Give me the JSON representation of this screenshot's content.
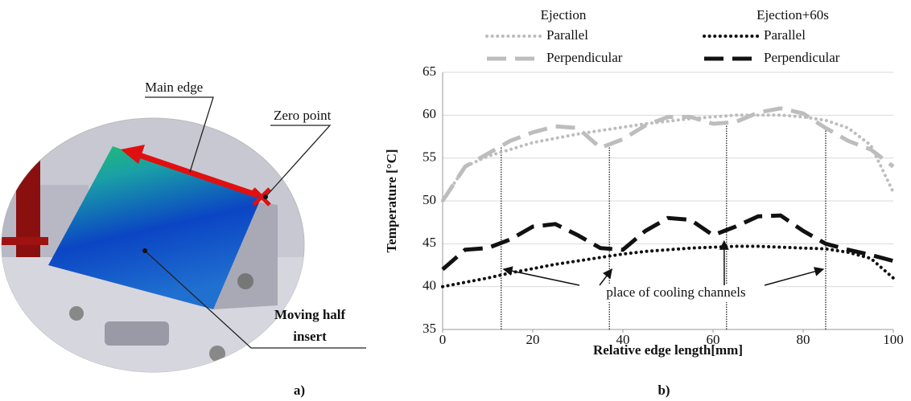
{
  "panel_a": {
    "main_edge": "Main edge",
    "zero_point": "Zero point",
    "moving_half_insert": [
      "Moving half",
      "insert"
    ],
    "caption": "a)"
  },
  "panel_b_caption": "b)",
  "chart_data": {
    "type": "line",
    "xlabel": "Relative edge length[mm]",
    "ylabel": "Temperature [°C]",
    "legend_groups": [
      "Ejection",
      "Ejection+60s"
    ],
    "x": [
      0,
      5,
      10,
      15,
      20,
      25,
      30,
      35,
      40,
      45,
      50,
      55,
      60,
      65,
      70,
      75,
      80,
      85,
      90,
      95,
      100
    ],
    "series": [
      {
        "name": "Parallel",
        "color": "#bdbdbd",
        "style": "dotted",
        "values": [
          50,
          54,
          55.2,
          56,
          56.8,
          57.3,
          57.8,
          58.2,
          58.6,
          59,
          59.3,
          59.6,
          59.8,
          60,
          60,
          60,
          59.8,
          59.4,
          58.5,
          56.5,
          51
        ]
      },
      {
        "name": "Perpendicular",
        "color": "#bdbdbd",
        "style": "dashed",
        "values": [
          50,
          54,
          55.5,
          57,
          58,
          58.7,
          58.5,
          56.2,
          57.2,
          58.8,
          59.8,
          59.8,
          59,
          59.2,
          60.3,
          60.8,
          60.2,
          58.5,
          57,
          56,
          54
        ]
      },
      {
        "name": "Parallel",
        "color": "#111111",
        "style": "dotted",
        "values": [
          40,
          40.5,
          41,
          41.6,
          42.1,
          42.6,
          43,
          43.4,
          43.8,
          44.1,
          44.3,
          44.5,
          44.6,
          44.7,
          44.7,
          44.6,
          44.5,
          44.4,
          44,
          43.3,
          41
        ]
      },
      {
        "name": "Perpendicular",
        "color": "#111111",
        "style": "dashed",
        "values": [
          42,
          44.3,
          44.5,
          45.5,
          47,
          47.3,
          46,
          44.5,
          44.3,
          46.5,
          48,
          47.8,
          46,
          47,
          48.2,
          48.3,
          46.5,
          45,
          44.3,
          43.7,
          43
        ]
      }
    ],
    "cooling_channels": [
      13,
      37,
      63,
      85
    ],
    "annotation": "place of cooling channels",
    "xlim": [
      0,
      100
    ],
    "xticks": [
      0,
      20,
      40,
      60,
      80,
      100
    ],
    "ylim": [
      35,
      65
    ],
    "yticks": [
      35,
      40,
      45,
      50,
      55,
      60,
      65
    ],
    "grid": true
  }
}
